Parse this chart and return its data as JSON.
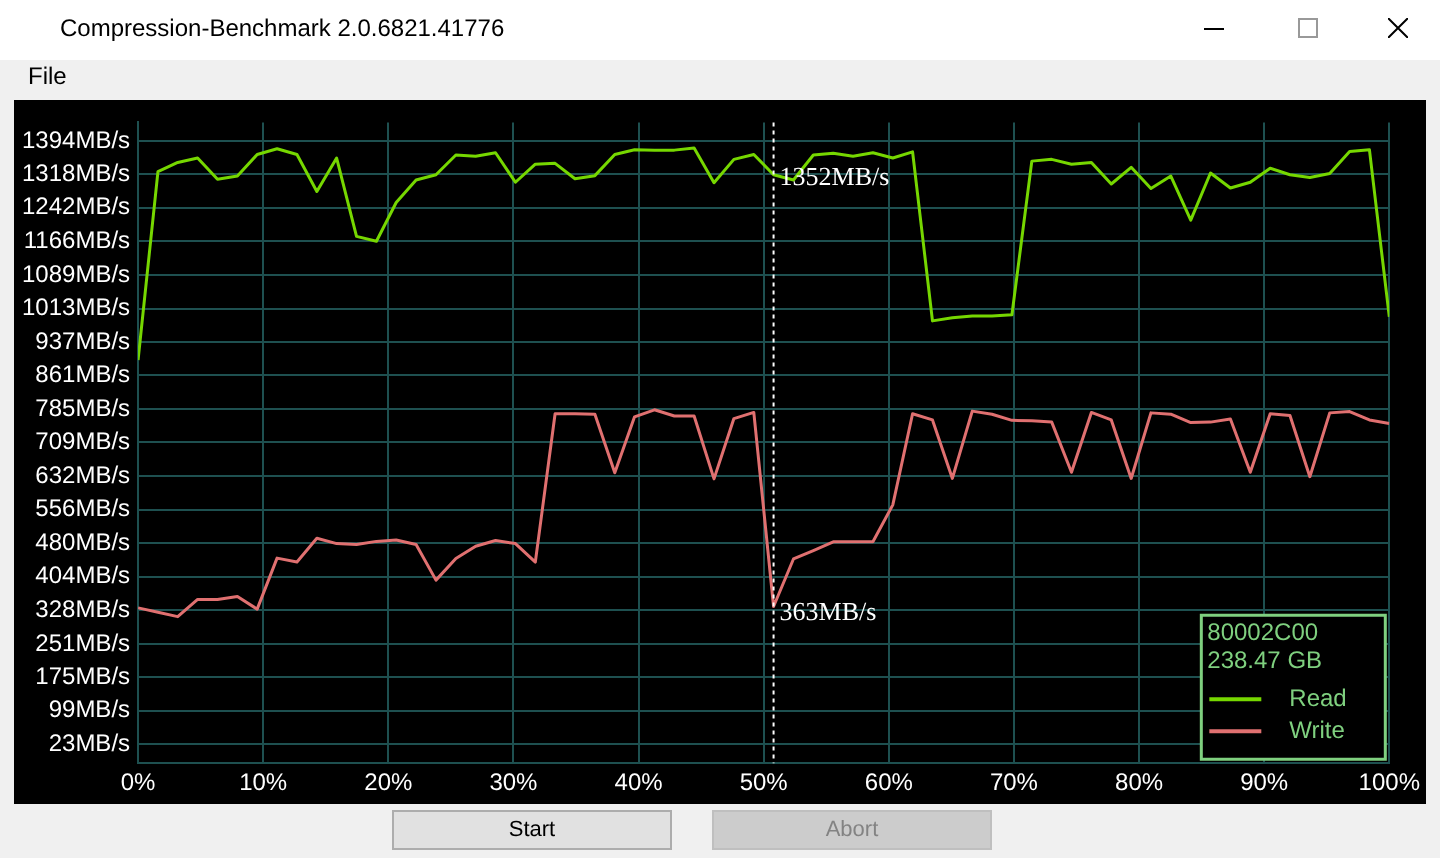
{
  "chart_data": {
    "type": "line",
    "title": "Compression-Benchmark 2.0.6821.41776",
    "x": [
      0,
      1.59,
      3.17,
      4.76,
      6.35,
      7.94,
      9.52,
      11.11,
      12.7,
      14.29,
      15.87,
      17.46,
      19.05,
      20.63,
      22.22,
      23.81,
      25.4,
      26.98,
      28.57,
      30.16,
      31.75,
      33.33,
      34.92,
      36.51,
      38.1,
      39.68,
      41.27,
      42.86,
      44.44,
      46.03,
      47.62,
      49.21,
      50.79,
      52.38,
      53.97,
      55.56,
      57.14,
      58.73,
      60.32,
      61.9,
      63.49,
      65.08,
      66.67,
      68.25,
      69.84,
      71.43,
      73.02,
      74.6,
      76.19,
      77.78,
      79.37,
      80.95,
      82.54,
      84.13,
      85.71,
      87.3,
      88.89,
      90.48,
      92.06,
      93.65,
      95.24,
      96.83,
      98.41,
      100
    ],
    "series": [
      {
        "name": "Read",
        "color": "#76d700",
        "values": [
          896,
          1324,
          1345,
          1355,
          1307,
          1314,
          1363,
          1376,
          1363,
          1279,
          1355,
          1177,
          1166,
          1254,
          1305,
          1317,
          1362,
          1359,
          1367,
          1300,
          1341,
          1343,
          1308,
          1315,
          1363,
          1374,
          1373,
          1373,
          1378,
          1299,
          1352,
          1363,
          1317,
          1305,
          1362,
          1366,
          1359,
          1367,
          1355,
          1369,
          985,
          992,
          996,
          996,
          999,
          1348,
          1352,
          1341,
          1345,
          1296,
          1334,
          1286,
          1314,
          1214,
          1321,
          1287,
          1300,
          1332,
          1317,
          1311,
          1320,
          1370,
          1374,
          994
        ]
      },
      {
        "name": "Write",
        "color": "#e07070",
        "values": [
          333,
          323,
          313,
          352,
          352,
          359,
          330,
          446,
          437,
          491,
          479,
          477,
          484,
          487,
          477,
          396,
          445,
          473,
          486,
          479,
          437,
          774,
          774,
          773,
          640,
          767,
          783,
          769,
          769,
          626,
          763,
          777,
          336,
          444,
          463,
          483,
          483,
          483,
          567,
          774,
          760,
          627,
          780,
          773,
          759,
          758,
          755,
          641,
          777,
          760,
          627,
          776,
          773,
          754,
          755,
          762,
          641,
          774,
          770,
          631,
          776,
          779,
          760,
          752
        ]
      }
    ],
    "xlim": [
      0,
      100
    ],
    "xticks": [
      {
        "value": 0,
        "label": "0%"
      },
      {
        "value": 10,
        "label": "10%"
      },
      {
        "value": 20,
        "label": "20%"
      },
      {
        "value": 30,
        "label": "30%"
      },
      {
        "value": 40,
        "label": "40%"
      },
      {
        "value": 50,
        "label": "50%"
      },
      {
        "value": 60,
        "label": "60%"
      },
      {
        "value": 70,
        "label": "70%"
      },
      {
        "value": 80,
        "label": "80%"
      },
      {
        "value": 90,
        "label": "90%"
      },
      {
        "value": 100,
        "label": "100%"
      }
    ],
    "ylim": [
      -20,
      1436
    ],
    "yticks": [
      {
        "value": 23,
        "label": "23MB/s"
      },
      {
        "value": 99,
        "label": "99MB/s"
      },
      {
        "value": 175,
        "label": "175MB/s"
      },
      {
        "value": 251,
        "label": "251MB/s"
      },
      {
        "value": 328,
        "label": "328MB/s"
      },
      {
        "value": 404,
        "label": "404MB/s"
      },
      {
        "value": 480,
        "label": "480MB/s"
      },
      {
        "value": 556,
        "label": "556MB/s"
      },
      {
        "value": 632,
        "label": "632MB/s"
      },
      {
        "value": 709,
        "label": "709MB/s"
      },
      {
        "value": 785,
        "label": "785MB/s"
      },
      {
        "value": 861,
        "label": "861MB/s"
      },
      {
        "value": 937,
        "label": "937MB/s"
      },
      {
        "value": 1013,
        "label": "1013MB/s"
      },
      {
        "value": 1089,
        "label": "1089MB/s"
      },
      {
        "value": 1166,
        "label": "1166MB/s"
      },
      {
        "value": 1242,
        "label": "1242MB/s"
      },
      {
        "value": 1318,
        "label": "1318MB/s"
      },
      {
        "value": 1394,
        "label": "1394MB/s"
      }
    ],
    "ref_lines": [
      {
        "axis": "x",
        "value": 50.79,
        "color": "#ffffff",
        "line_style": "dotted"
      }
    ],
    "annotations": [
      "80002C00",
      "238.47 GB",
      "File",
      "Start",
      "Abort",
      {
        "text": "1352MB/s",
        "x": 50.79,
        "y": 1352
      },
      {
        "text": "363MB/s",
        "x": 50.79,
        "y": 363
      }
    ],
    "grid": true,
    "legend": "bottom right",
    "marker": "none",
    "line_style": "solid"
  }
}
